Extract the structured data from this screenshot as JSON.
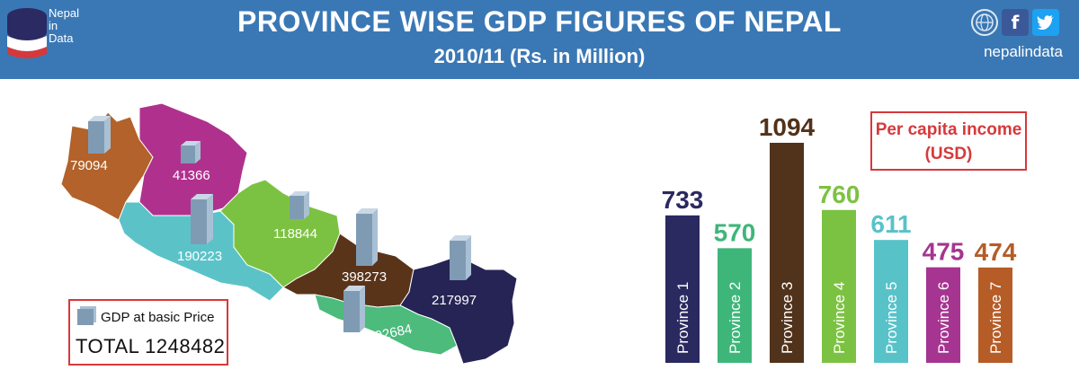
{
  "header": {
    "logo_lines": [
      "Nepal",
      "in",
      "Data"
    ],
    "title": "PROVINCE WISE GDP FIGURES OF NEPAL",
    "subtitle": "2010/11  (Rs. in Million)",
    "social_handle": "nepalindata",
    "social_icons": [
      "www-globe-icon",
      "facebook-icon",
      "twitter-icon"
    ],
    "colors": {
      "header_bg": "#3a78b5",
      "text": "#ffffff"
    }
  },
  "legend": {
    "label": "GDP at basic Price",
    "total": "TOTAL 1248482"
  },
  "per_capita_label_line1": "Per capita income",
  "per_capita_label_line2": "(USD)",
  "chart_data": [
    {
      "type": "map",
      "series": [
        {
          "name": "GDP at basic Price",
          "regions": [
            {
              "label": "79094",
              "value": 79094,
              "color": "#b2622a"
            },
            {
              "label": "41366",
              "value": 41366,
              "color": "#b0318d"
            },
            {
              "label": "190223",
              "value": 190223,
              "color": "#5bc3c8"
            },
            {
              "label": "118844",
              "value": 118844,
              "color": "#7cc242"
            },
            {
              "label": "398273",
              "value": 398273,
              "color": "#5a3419"
            },
            {
              "label": "217997",
              "value": 217997,
              "color": "#262454"
            },
            {
              "label": "202684",
              "value": 202684,
              "color": "#4cbb7c"
            }
          ]
        }
      ],
      "total": 1248482
    },
    {
      "type": "bar",
      "title": "",
      "categories": [
        "Province 1",
        "Province 2",
        "Province 3",
        "Province 4",
        "Province 5",
        "Province 6",
        "Province 7"
      ],
      "values": [
        733,
        570,
        1094,
        760,
        611,
        475,
        474
      ],
      "colors": [
        "#2a2960",
        "#3eb67a",
        "#51321a",
        "#7cc242",
        "#58c2c9",
        "#a53590",
        "#b55c27"
      ],
      "ylim": [
        0,
        1094
      ]
    }
  ]
}
